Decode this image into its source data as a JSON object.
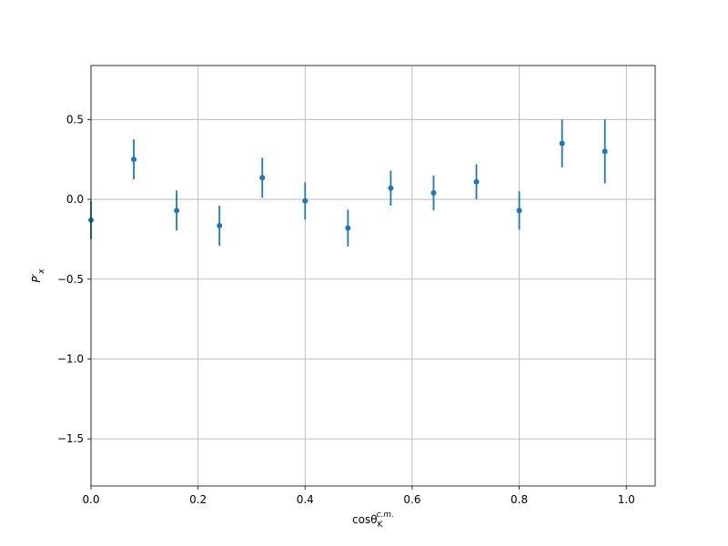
{
  "chart_data": {
    "type": "errorbar",
    "xlabel": "cosθ",
    "xlabel_sub": "K",
    "xlabel_sup": "c.m.",
    "ylabel": "P′",
    "ylabel_sub": "x",
    "x": [
      0,
      0.08,
      0.16,
      0.24,
      0.32,
      0.4,
      0.48,
      0.56,
      0.64,
      0.72,
      0.8,
      0.88,
      0.96
    ],
    "values": [
      -0.13,
      0.25,
      -0.07,
      -0.165,
      0.135,
      -0.01,
      -0.18,
      0.07,
      0.04,
      0.11,
      -0.07,
      0.35,
      0.3
    ],
    "errors": [
      0.12,
      0.125,
      0.125,
      0.125,
      0.125,
      0.117,
      0.115,
      0.11,
      0.11,
      0.11,
      0.12,
      0.15,
      0.2
    ],
    "color": "#1f77b4",
    "xlim": [
      0,
      1.054
    ],
    "ylim": [
      -1.795,
      0.838
    ],
    "xticks": [
      {
        "value": 0,
        "label": "0.0"
      },
      0.2,
      0.4,
      0.6,
      0.8,
      {
        "value": 1,
        "label": "1.0"
      }
    ],
    "yticks": [
      {
        "value": -1.5,
        "label": "−1.5"
      },
      {
        "value": -1,
        "label": "−1.0"
      },
      {
        "value": -0.5,
        "label": "−0.5"
      },
      {
        "value": 0,
        "label": "0.0"
      },
      0.5
    ],
    "grid": true
  }
}
